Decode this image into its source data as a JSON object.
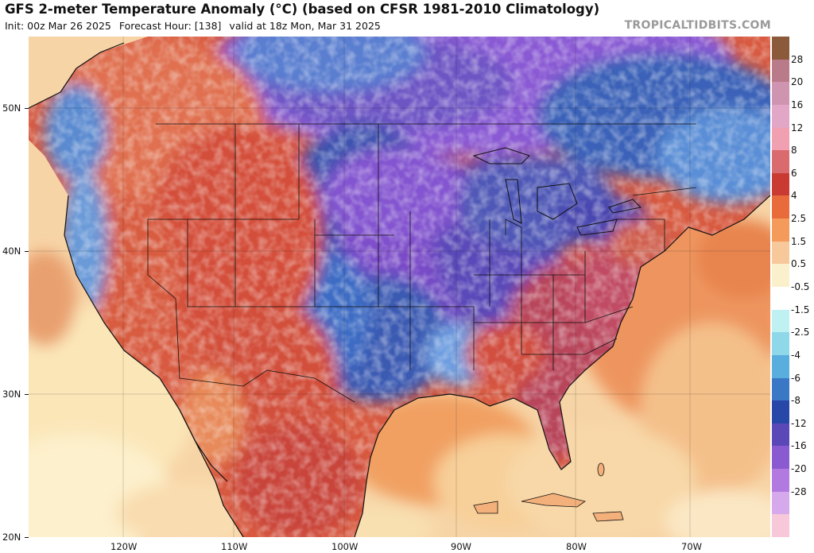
{
  "title": "GFS 2-meter Temperature Anomaly (°C) (based on CFSR 1981-2010 Climatology)",
  "subtitle": {
    "init": "Init: 00z Mar 26 2025",
    "forecast_hour": "Forecast Hour: [138]",
    "valid": "valid at 18z Mon, Mar 31 2025"
  },
  "source": "TROPICALTIDBITS.COM",
  "latitude_labels": [
    "50N",
    "40N",
    "30N",
    "20N"
  ],
  "longitude_labels": [
    "120W",
    "110W",
    "100W",
    "90W",
    "80W",
    "70W"
  ],
  "colorbar": {
    "labels": [
      "28",
      "20",
      "16",
      "12",
      "8",
      "6",
      "4",
      "2.5",
      "1.5",
      "0.5",
      "-0.5",
      "-1.5",
      "-2.5",
      "-4",
      "-6",
      "-8",
      "-12",
      "-16",
      "-20",
      "-28"
    ],
    "colors": [
      "#8a5a3a",
      "#b97a8a",
      "#cf95b0",
      "#e2a6c6",
      "#f0a0b0",
      "#d96a6e",
      "#c93a33",
      "#e96a3a",
      "#f49a5a",
      "#f6c89a",
      "#fbf0cc",
      "#ffffff",
      "#bff0f2",
      "#8fd8ea",
      "#5aaede",
      "#3a78c6",
      "#2748a8",
      "#5a48b8",
      "#8a5ad0",
      "#b27ae0",
      "#d6a8ec",
      "#f6c8da"
    ]
  },
  "map": {
    "colors": {
      "ocean_warm": "#f6c99a",
      "ocean_mild": "#fbe8bc",
      "ocean_atlantic": "#f2a36a",
      "cold_deep": "#2c4fa8",
      "cold_purple": "#7a52c8",
      "cold_violet": "#a86ae0",
      "warm_red": "#d2483a",
      "warm_orange": "#ec7c4a",
      "hot_pink": "#b0445a",
      "cool_light": "#6ea8de",
      "border": "#111111"
    }
  }
}
